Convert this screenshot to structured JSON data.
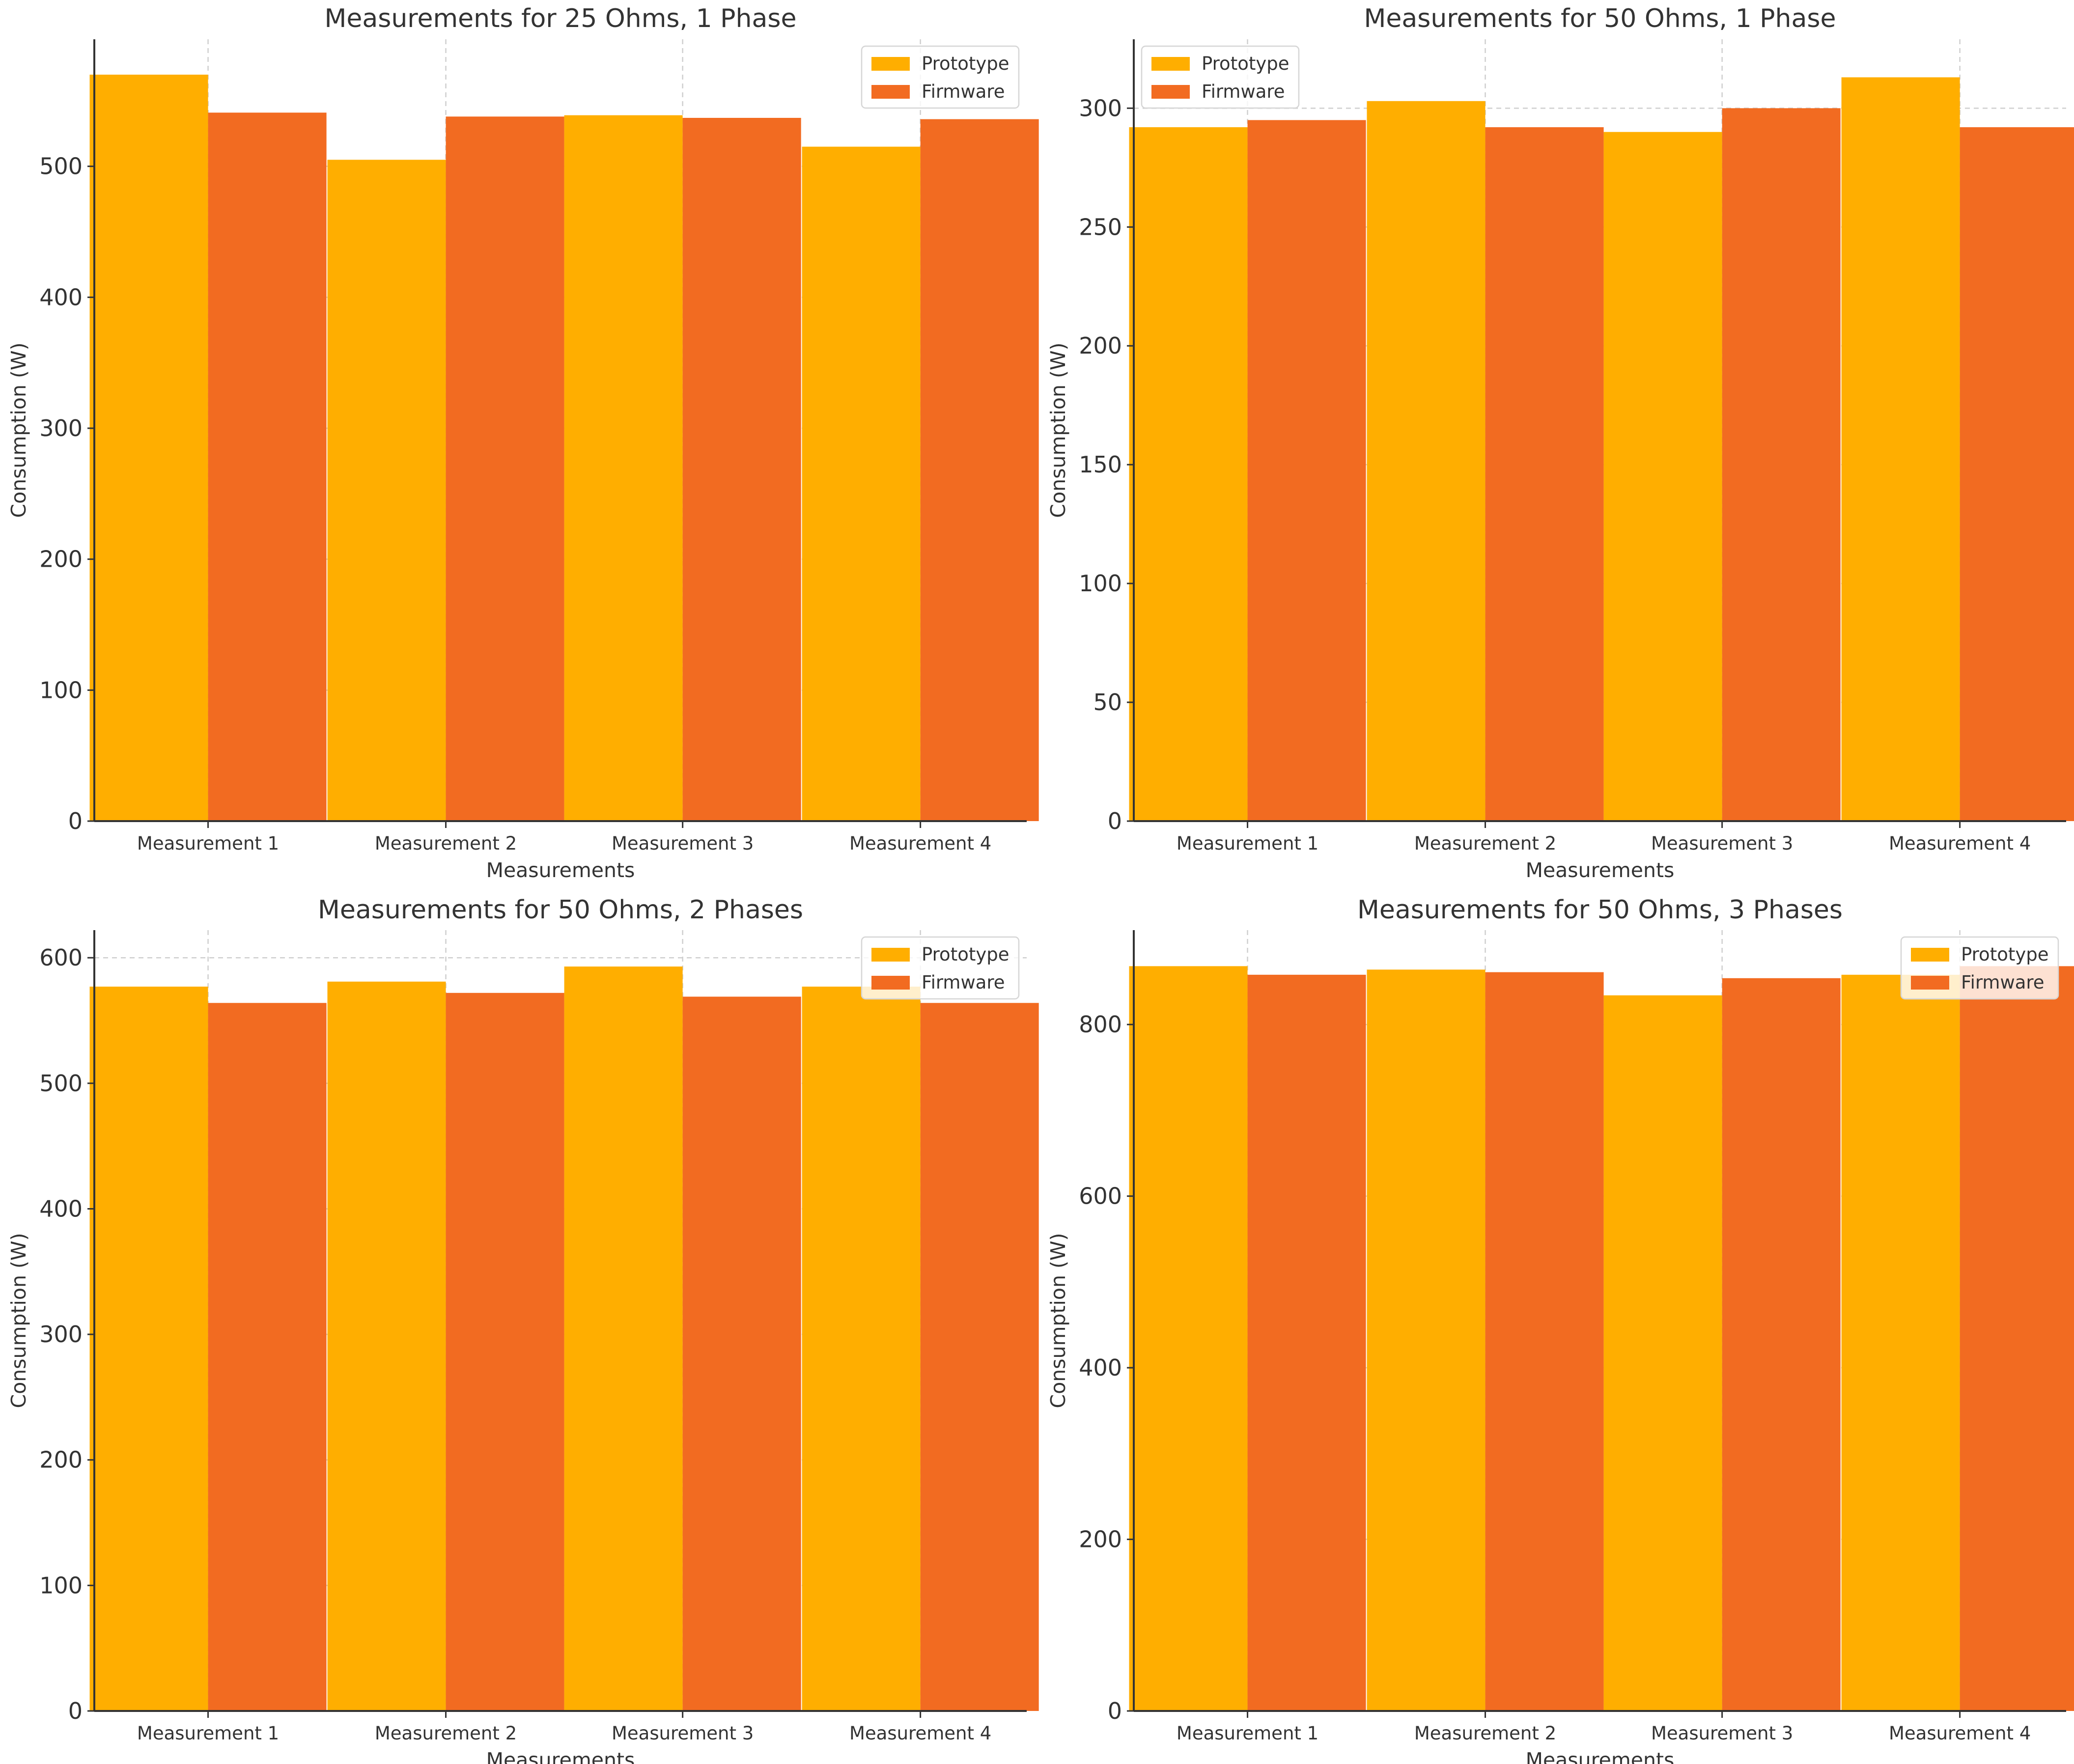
{
  "chart_data": [
    {
      "type": "bar",
      "title": "Measurements for 25 Ohms, 1 Phase",
      "xlabel": "Measurements",
      "ylabel": "Consumption (W)",
      "categories": [
        "Measurement 1",
        "Measurement 2",
        "Measurement 3",
        "Measurement 4"
      ],
      "series": [
        {
          "name": "Prototype",
          "values": [
            570,
            505,
            539,
            515
          ]
        },
        {
          "name": "Firmware",
          "values": [
            541,
            538,
            537,
            536
          ]
        }
      ],
      "ylim": [
        0,
        597
      ],
      "yticks": [
        0,
        100,
        200,
        300,
        400,
        500
      ],
      "grid": true,
      "legend": "top-right"
    },
    {
      "type": "bar",
      "title": "Measurements for 50 Ohms, 1 Phase",
      "xlabel": "Measurements",
      "ylabel": "Consumption (W)",
      "categories": [
        "Measurement 1",
        "Measurement 2",
        "Measurement 3",
        "Measurement 4"
      ],
      "series": [
        {
          "name": "Prototype",
          "values": [
            292,
            303,
            290,
            313
          ]
        },
        {
          "name": "Firmware",
          "values": [
            295,
            292,
            300,
            292
          ]
        }
      ],
      "ylim": [
        0,
        329
      ],
      "yticks": [
        0,
        50,
        100,
        150,
        200,
        250,
        300
      ],
      "grid": true,
      "legend": "top-left"
    },
    {
      "type": "bar",
      "title": "Measurements for 50 Ohms, 2 Phases",
      "xlabel": "Measurements",
      "ylabel": "Consumption (W)",
      "categories": [
        "Measurement 1",
        "Measurement 2",
        "Measurement 3",
        "Measurement 4"
      ],
      "series": [
        {
          "name": "Prototype",
          "values": [
            577,
            581,
            593,
            577
          ]
        },
        {
          "name": "Firmware",
          "values": [
            564,
            572,
            569,
            564
          ]
        }
      ],
      "ylim": [
        0,
        622
      ],
      "yticks": [
        0,
        100,
        200,
        300,
        400,
        500,
        600
      ],
      "grid": true,
      "legend": "top-right"
    },
    {
      "type": "bar",
      "title": "Measurements for 50 Ohms, 3 Phases",
      "xlabel": "Measurements",
      "ylabel": "Consumption (W)",
      "categories": [
        "Measurement 1",
        "Measurement 2",
        "Measurement 3",
        "Measurement 4"
      ],
      "series": [
        {
          "name": "Prototype",
          "values": [
            868,
            864,
            834,
            858
          ]
        },
        {
          "name": "Firmware",
          "values": [
            858,
            861,
            854,
            868
          ]
        }
      ],
      "ylim": [
        0,
        910
      ],
      "yticks": [
        0,
        200,
        400,
        600,
        800
      ],
      "grid": true,
      "legend": "top-right"
    }
  ],
  "colors": {
    "Prototype": "#FFAE00",
    "Firmware": "#F26B21"
  }
}
